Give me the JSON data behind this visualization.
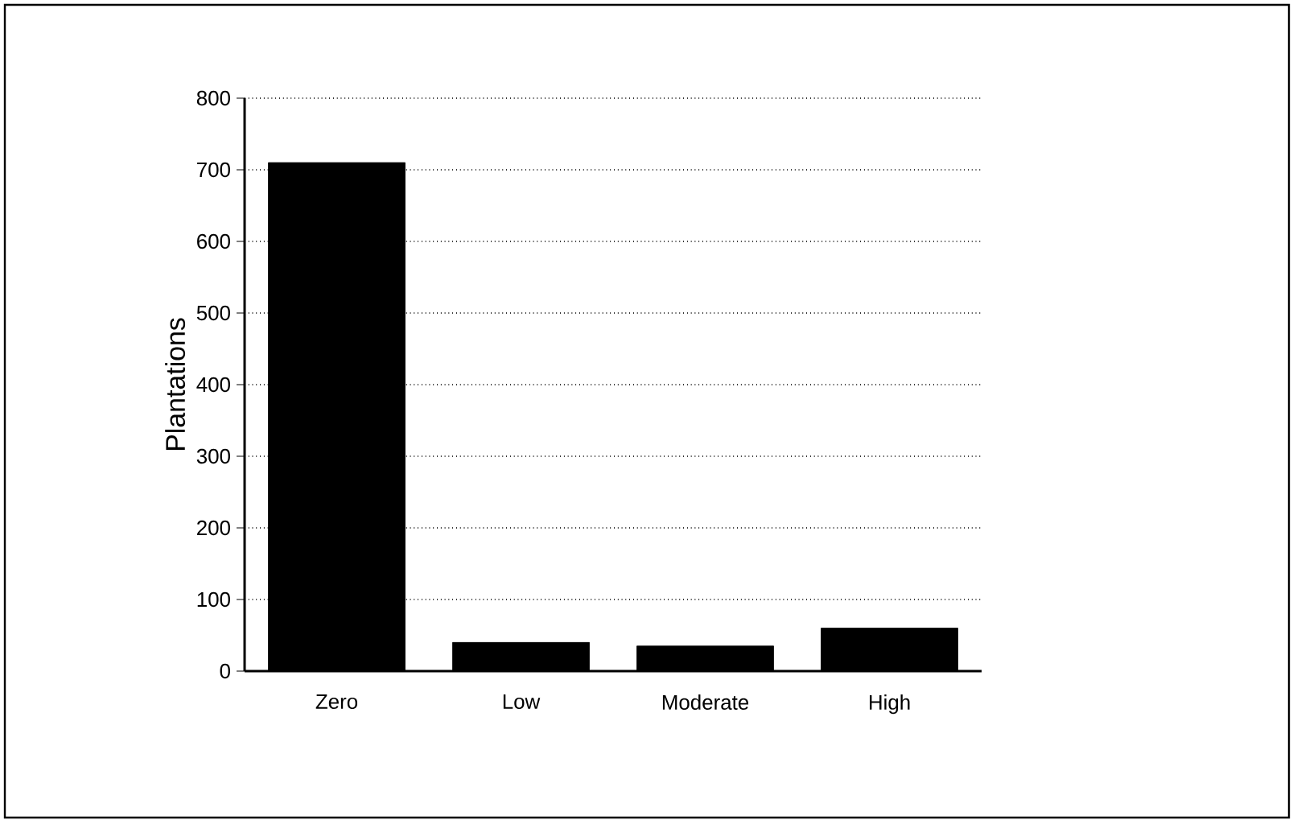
{
  "chart_data": {
    "type": "bar",
    "ylabel": "Plantations",
    "categories": [
      "Zero",
      "Low",
      "Moderate",
      "High"
    ],
    "values": [
      710,
      40,
      35,
      60
    ],
    "color": "#000000",
    "ylim": [
      0,
      800
    ],
    "yticks": [
      0,
      100,
      200,
      300,
      400,
      500,
      600,
      700,
      800
    ],
    "grid": "y"
  }
}
